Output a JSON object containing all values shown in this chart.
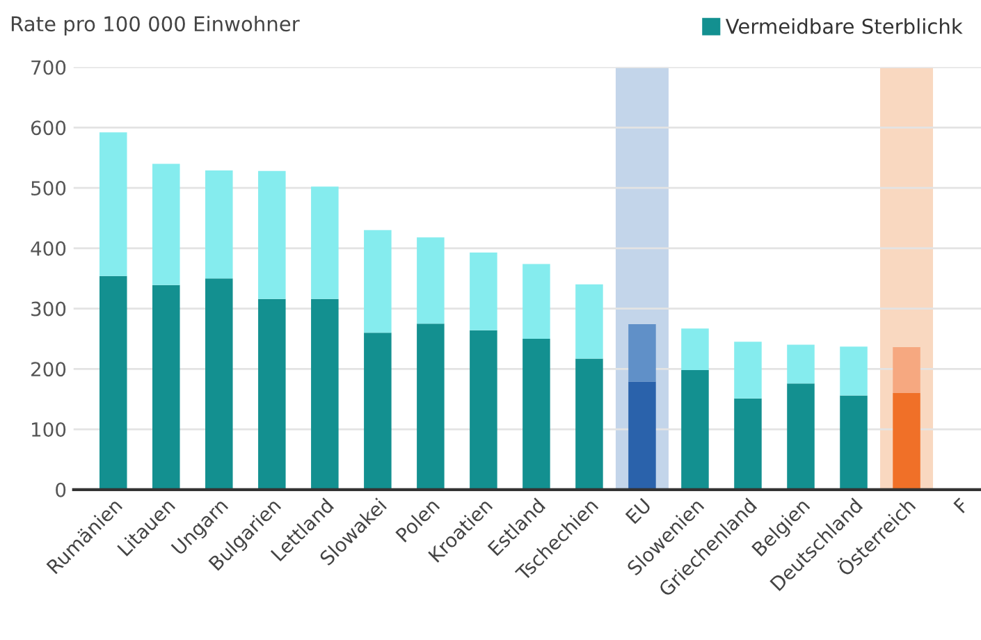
{
  "chart_data": {
    "type": "bar",
    "stacked": true,
    "ylabel": "Rate pro 100 000 Einwohner",
    "categories": [
      "Rumänien",
      "Litauen",
      "Ungarn",
      "Bulgarien",
      "Lettland",
      "Slowakei",
      "Polen",
      "Kroatien",
      "Estland",
      "Tschechien",
      "EU",
      "Slowenien",
      "Griechenland",
      "Belgien",
      "Deutschland",
      "Österreich",
      "F"
    ],
    "series": [
      {
        "name": "Vermeidbare Sterblichk",
        "color": "#139090",
        "colors": [
          "#139090",
          "#139090",
          "#139090",
          "#139090",
          "#139090",
          "#139090",
          "#139090",
          "#139090",
          "#139090",
          "#139090",
          "#2a62ab",
          "#139090",
          "#139090",
          "#139090",
          "#139090",
          "#f07028",
          null
        ],
        "values": [
          354,
          339,
          350,
          316,
          316,
          260,
          275,
          264,
          250,
          217,
          179,
          198,
          151,
          176,
          156,
          160,
          null
        ]
      },
      {
        "color": "#85ecee",
        "colors": [
          "#85ecee",
          "#85ecee",
          "#85ecee",
          "#85ecee",
          "#85ecee",
          "#85ecee",
          "#85ecee",
          "#85ecee",
          "#85ecee",
          "#85ecee",
          "#6090c8",
          "#85ecee",
          "#85ecee",
          "#85ecee",
          "#85ecee",
          "#f6a880",
          null
        ],
        "values": [
          238,
          201,
          179,
          212,
          186,
          170,
          143,
          129,
          124,
          123,
          95,
          69,
          94,
          64,
          81,
          76,
          null
        ]
      }
    ],
    "bands": [
      {
        "axis": "x",
        "from": "EU",
        "to": "EU",
        "color": "#c3d5ea"
      },
      {
        "axis": "x",
        "from": "Österreich",
        "to": "Österreich",
        "color": "#f9d8c0"
      }
    ],
    "ylim": [
      0,
      700
    ],
    "yticks": [
      0,
      100,
      200,
      300,
      400,
      500,
      600,
      700
    ],
    "grid": "y",
    "legend": "top right"
  }
}
